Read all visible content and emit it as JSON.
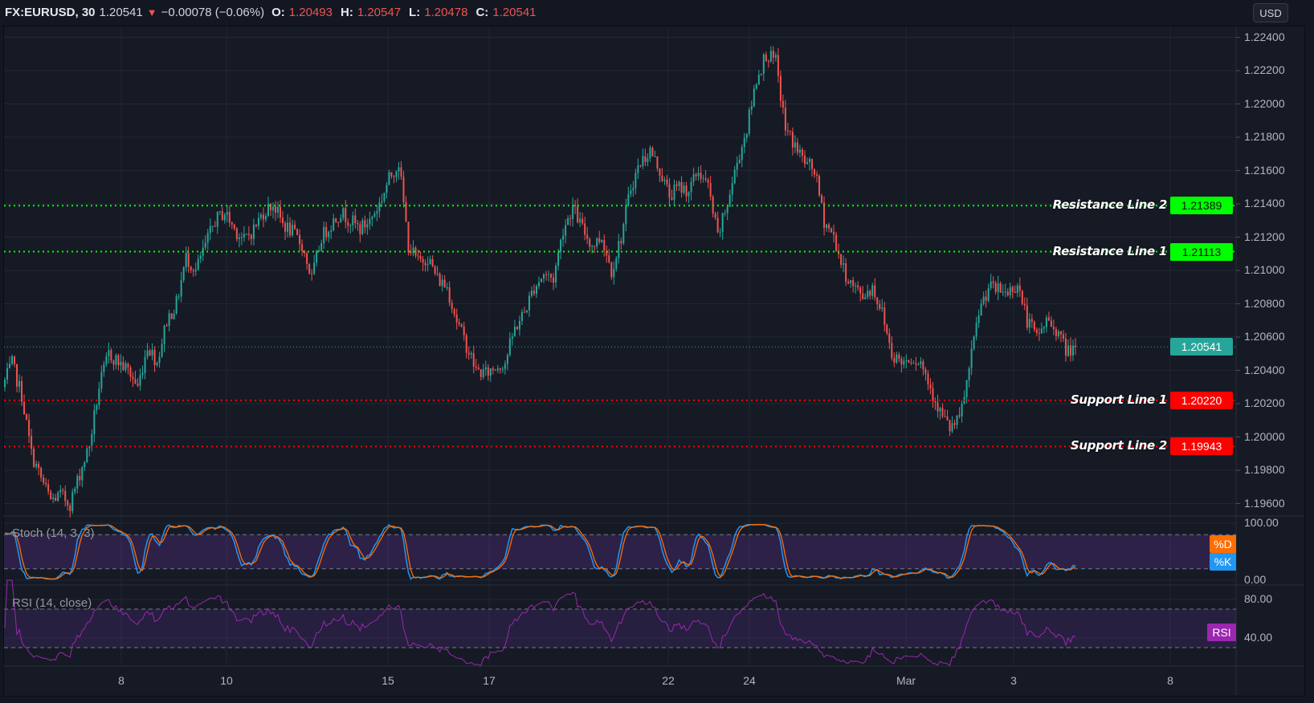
{
  "header": {
    "symbol": "FX:EURUSD, 30",
    "last": "1.20541",
    "direction_icon": "triangle-down-icon",
    "change": "−0.00078 (−0.06%)",
    "open_label": "O:",
    "open": "1.20493",
    "high_label": "H:",
    "high": "1.20547",
    "low_label": "L:",
    "low": "1.20478",
    "close_label": "C:",
    "close": "1.20541"
  },
  "currency_button": "USD",
  "colors": {
    "background": "#161a25",
    "grid": "#232734",
    "up": "#26a69a",
    "down": "#ef5350",
    "resistance": "#00ff00",
    "support": "#ff0000",
    "stoch_k": "#2196f3",
    "stoch_d": "#ff6d00",
    "rsi": "#9c27b0"
  },
  "chart_data": {
    "type": "candlestick",
    "symbol": "FX:EURUSD",
    "interval": "30",
    "price_axis": {
      "ticks": [
        "1.22400",
        "1.22200",
        "1.22000",
        "1.21800",
        "1.21600",
        "1.21400",
        "1.21200",
        "1.21000",
        "1.20800",
        "1.20600",
        "1.20400",
        "1.20200",
        "1.20000",
        "1.19800",
        "1.19600"
      ]
    },
    "time_axis": {
      "ticks": [
        "8",
        "10",
        "15",
        "17",
        "22",
        "24",
        "Mar",
        "3",
        "8"
      ]
    },
    "grid": true,
    "approx_closes": [
      1.203,
      1.2044,
      1.2025,
      1.199,
      1.1975,
      1.1962,
      1.1965,
      1.196,
      1.1978,
      1.1995,
      1.203,
      1.205,
      1.2045,
      1.204,
      1.203,
      1.2055,
      1.2045,
      1.207,
      1.208,
      1.2108,
      1.21,
      1.2115,
      1.213,
      1.2135,
      1.2125,
      1.2118,
      1.2125,
      1.2135,
      1.214,
      1.2128,
      1.2123,
      1.2115,
      1.2095,
      1.212,
      1.2128,
      1.2135,
      1.213,
      1.2125,
      1.213,
      1.214,
      1.2155,
      1.2165,
      1.2115,
      1.2105,
      1.2108,
      1.2095,
      1.209,
      1.207,
      1.2055,
      1.204,
      1.2038,
      1.2042,
      1.2045,
      1.2065,
      1.2075,
      1.209,
      1.2098,
      1.2095,
      1.2125,
      1.2138,
      1.2125,
      1.2115,
      1.212,
      1.21,
      1.212,
      1.215,
      1.2165,
      1.2172,
      1.216,
      1.2145,
      1.215,
      1.2148,
      1.216,
      1.215,
      1.212,
      1.214,
      1.2165,
      1.2185,
      1.2215,
      1.223,
      1.2225,
      1.2185,
      1.2175,
      1.2165,
      1.216,
      1.213,
      1.212,
      1.21,
      1.209,
      1.2085,
      1.209,
      1.2075,
      1.205,
      1.2045,
      1.2048,
      1.2045,
      1.203,
      1.2015,
      1.2005,
      1.201,
      1.204,
      1.2075,
      1.209,
      1.2088,
      1.2087,
      1.2092,
      1.207,
      1.206,
      1.207,
      1.2065,
      1.2052,
      1.20541
    ],
    "last_price": {
      "value": 1.20541,
      "label": "1.20541"
    },
    "price_lines": [
      {
        "name": "Resistance Line 2",
        "value": 1.21389,
        "label": "1.21389",
        "color": "#00ff00"
      },
      {
        "name": "Resistance Line 1",
        "value": 1.21113,
        "label": "1.21113",
        "color": "#00ff00"
      },
      {
        "name": "Support Line 1",
        "value": 1.2022,
        "label": "1.20220",
        "color": "#ff0000"
      },
      {
        "name": "Support Line 2",
        "value": 1.19943,
        "label": "1.19943",
        "color": "#ff0000"
      }
    ],
    "indicators": {
      "stoch": {
        "title": "Stoch (14, 3, 3)",
        "ticks": [
          "100.00",
          "0.00"
        ],
        "bands": [
          20,
          80
        ],
        "d_tag": "%D",
        "k_tag": "%K"
      },
      "rsi": {
        "title": "RSI (14, close)",
        "ticks": [
          "80.00",
          "40.00"
        ],
        "bands": [
          30,
          70
        ],
        "tag": "RSI"
      }
    }
  }
}
